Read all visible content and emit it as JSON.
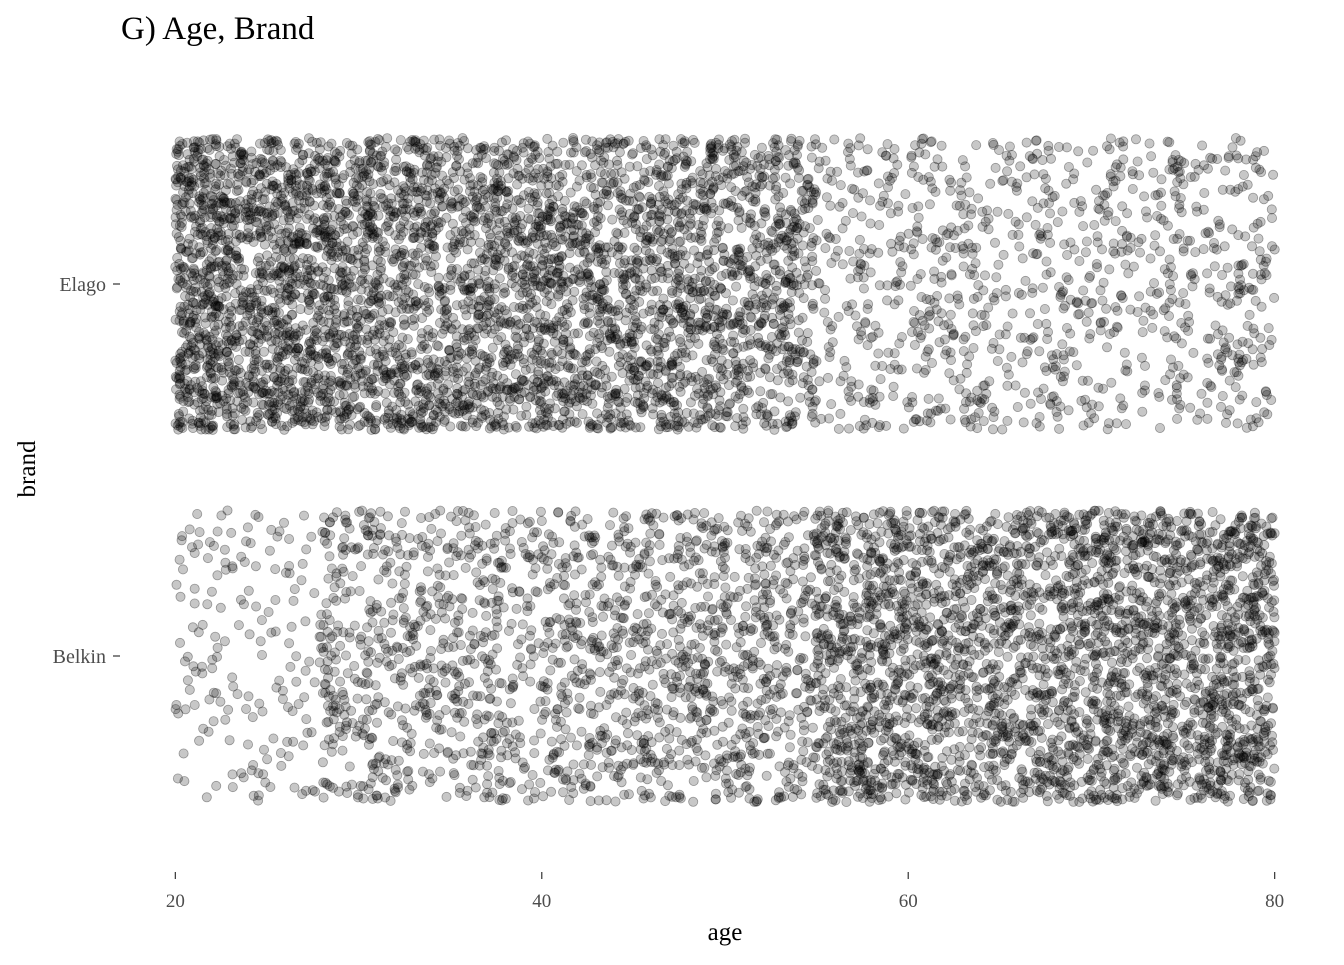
{
  "chart_data": {
    "type": "scatter",
    "title": "G) Age, Brand",
    "xlabel": "age",
    "ylabel": "brand",
    "xlim": [
      19.6,
      80.4
    ],
    "x_ticks": [
      20,
      40,
      60,
      80
    ],
    "categories": [
      "Belkin",
      "Elago"
    ],
    "grid": false,
    "legend": "none",
    "point_color": "#000000",
    "point_opacity": 0.22,
    "jitter_height": 0.4,
    "series": [
      {
        "category": "Elago",
        "age_density": [
          {
            "range": [
              20,
              23
            ],
            "count": 560
          },
          {
            "range": [
              23,
              30
            ],
            "count": 1100
          },
          {
            "range": [
              30,
              40
            ],
            "count": 1350
          },
          {
            "range": [
              40,
              50
            ],
            "count": 1250
          },
          {
            "range": [
              50,
              55
            ],
            "count": 520
          },
          {
            "range": [
              55,
              80
            ],
            "count": 1000
          }
        ]
      },
      {
        "category": "Belkin",
        "age_density": [
          {
            "range": [
              20,
              28
            ],
            "count": 170
          },
          {
            "range": [
              28,
              40
            ],
            "count": 700
          },
          {
            "range": [
              40,
              55
            ],
            "count": 1050
          },
          {
            "range": [
              55,
              70
            ],
            "count": 1800
          },
          {
            "range": [
              70,
              80
            ],
            "count": 1350
          }
        ]
      }
    ]
  }
}
